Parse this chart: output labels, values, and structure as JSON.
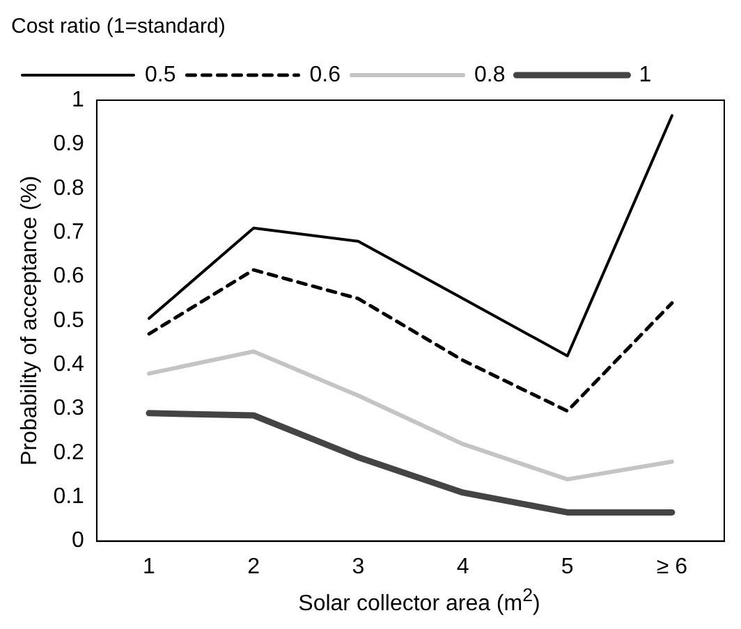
{
  "chart_data": {
    "type": "line",
    "legend_title": "Cost ratio (1=standard)",
    "xlabel": "Solar collector area (m$^{2}$)",
    "ylabel": "Probability of acceptance (%)",
    "categories": [
      "1",
      "2",
      "3",
      "4",
      "5",
      "≥ 6"
    ],
    "series": [
      {
        "name": "0.5",
        "color": "#000000",
        "line_style": "solid",
        "values": [
          0.505,
          0.71,
          0.68,
          0.55,
          0.42,
          0.965
        ]
      },
      {
        "name": "0.6",
        "color": "#000000",
        "line_style": "dashed",
        "values": [
          0.47,
          0.615,
          0.55,
          0.41,
          0.295,
          0.54
        ]
      },
      {
        "name": "0.8",
        "color": "#c4c4c4",
        "line_style": "solid",
        "values": [
          0.38,
          0.43,
          0.33,
          0.22,
          0.14,
          0.18
        ]
      },
      {
        "name": "1",
        "color": "#444444",
        "line_style": "solid",
        "values": [
          0.29,
          0.285,
          0.19,
          0.11,
          0.065,
          0.065
        ]
      }
    ],
    "ylim": [
      0,
      1
    ],
    "yticks": [
      0,
      0.1,
      0.2,
      0.3,
      0.4,
      0.5,
      0.6,
      0.7,
      0.8,
      0.9,
      1
    ],
    "grid": false,
    "legend": "top",
    "marker": "none"
  }
}
